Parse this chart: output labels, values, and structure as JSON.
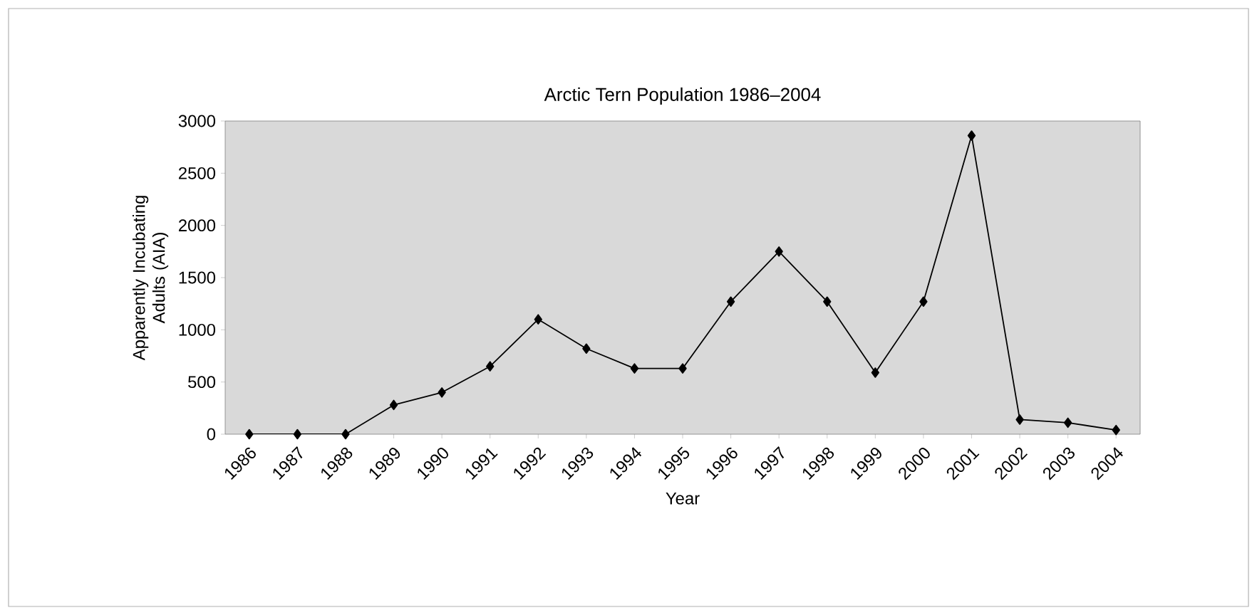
{
  "chart_data": {
    "type": "line",
    "title": "Arctic Tern Population 1986–2004",
    "xlabel": "Year",
    "ylabel": "Apparently Incubating Adults (AIA)",
    "categories": [
      "1986",
      "1987",
      "1988",
      "1989",
      "1990",
      "1991",
      "1992",
      "1993",
      "1994",
      "1995",
      "1996",
      "1997",
      "1998",
      "1999",
      "2000",
      "2001",
      "2002",
      "2003",
      "2004"
    ],
    "series": [
      {
        "color": "#000000",
        "values": [
          0,
          0,
          0,
          280,
          400,
          650,
          1100,
          820,
          630,
          630,
          1270,
          1750,
          1270,
          590,
          1270,
          2860,
          140,
          110,
          40
        ]
      }
    ],
    "ylim": [
      0,
      3000
    ],
    "yticks": [
      0,
      500,
      1000,
      1500,
      2000,
      2500,
      3000
    ],
    "marker": "diamond",
    "line_style": "solid"
  }
}
